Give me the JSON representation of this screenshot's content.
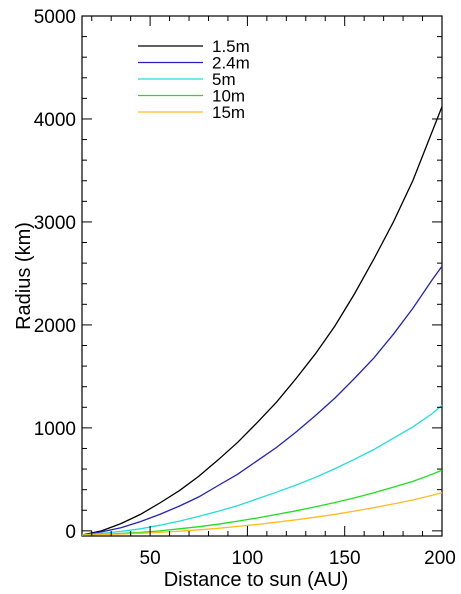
{
  "chart_data": {
    "type": "line",
    "title": "",
    "xlabel": "Distance to sun (AU)",
    "ylabel": "Radius (km)",
    "xlim": [
      15,
      200
    ],
    "ylim": [
      -50,
      5000
    ],
    "xticks": [
      50,
      100,
      150,
      200
    ],
    "yticks": [
      0,
      1000,
      2000,
      3000,
      4000,
      5000
    ],
    "grid": false,
    "legend_position": "top-left",
    "x": [
      15,
      25,
      35,
      45,
      55,
      65,
      75,
      85,
      95,
      105,
      115,
      125,
      135,
      145,
      155,
      165,
      175,
      185,
      195,
      200
    ],
    "series": [
      {
        "name": "1.5m",
        "color": "#000000",
        "values": [
          -40,
          0,
          70,
          160,
          270,
          390,
          530,
          690,
          860,
          1050,
          1250,
          1480,
          1720,
          1990,
          2300,
          2640,
          3000,
          3400,
          3880,
          4120
        ]
      },
      {
        "name": "2.4m",
        "color": "#2222bb",
        "values": [
          -40,
          -10,
          30,
          90,
          160,
          240,
          330,
          440,
          550,
          680,
          810,
          960,
          1120,
          1290,
          1480,
          1680,
          1910,
          2160,
          2440,
          2570
        ]
      },
      {
        "name": "5m",
        "color": "#22dddd",
        "values": [
          -40,
          -25,
          -5,
          20,
          55,
          95,
          140,
          190,
          245,
          310,
          375,
          445,
          520,
          605,
          695,
          790,
          900,
          1010,
          1140,
          1220
        ]
      },
      {
        "name": "10m",
        "color": "#22dd22",
        "values": [
          -40,
          -35,
          -25,
          -15,
          0,
          20,
          40,
          65,
          95,
          125,
          160,
          195,
          235,
          275,
          320,
          370,
          425,
          480,
          550,
          590
        ]
      },
      {
        "name": "15m",
        "color": "#ffbb22",
        "values": [
          -40,
          -37,
          -31,
          -24,
          -15,
          -3,
          10,
          25,
          43,
          62,
          84,
          107,
          133,
          161,
          192,
          225,
          262,
          300,
          345,
          370
        ]
      }
    ]
  }
}
